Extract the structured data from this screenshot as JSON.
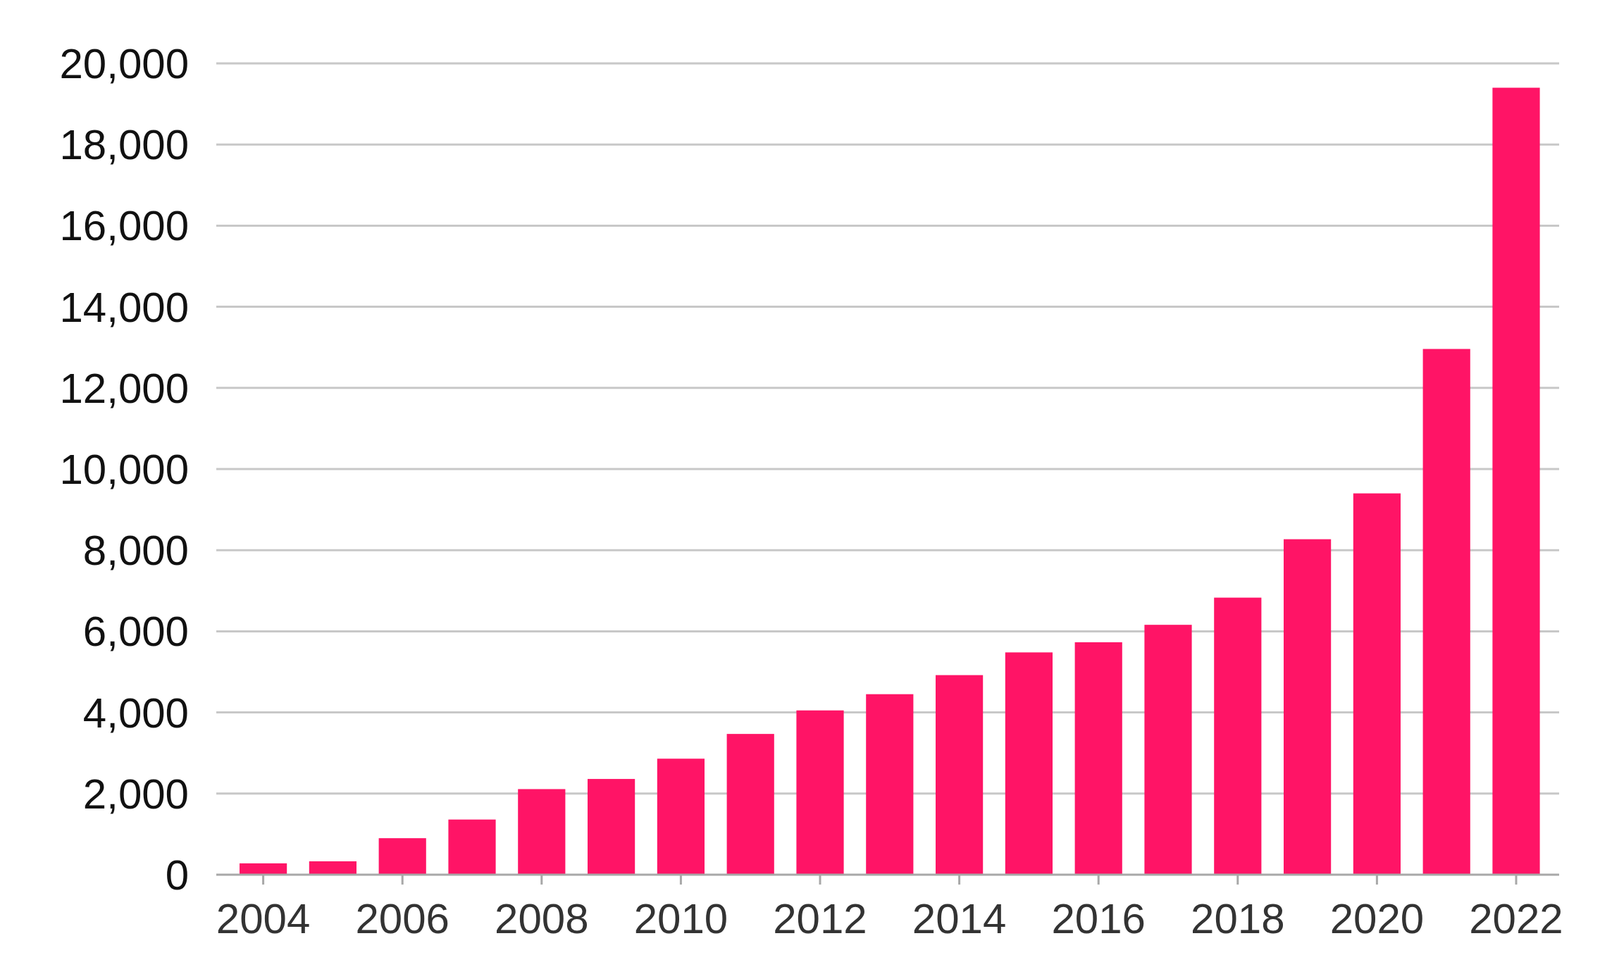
{
  "chart_data": {
    "type": "bar",
    "categories": [
      "2004",
      null,
      "2006",
      null,
      "2008",
      null,
      "2010",
      null,
      "2012",
      null,
      "2014",
      null,
      "2016",
      null,
      "2018",
      null,
      "2020",
      null,
      "2022"
    ],
    "values": [
      280,
      330,
      900,
      1360,
      2110,
      2360,
      2860,
      3470,
      4050,
      4450,
      4920,
      5480,
      5730,
      6160,
      6830,
      8270,
      9400,
      12960,
      19400
    ],
    "color": "#ff1466",
    "ylim": [
      0,
      20000
    ],
    "yticks": [
      0,
      {
        "value": 2000,
        "label": "2,000"
      },
      {
        "value": 4000,
        "label": "4,000"
      },
      {
        "value": 6000,
        "label": "6,000"
      },
      {
        "value": 8000,
        "label": "8,000"
      },
      {
        "value": 10000,
        "label": "10,000"
      },
      {
        "value": 12000,
        "label": "12,000"
      },
      {
        "value": 14000,
        "label": "14,000"
      },
      {
        "value": 16000,
        "label": "16,000"
      },
      {
        "value": 18000,
        "label": "18,000"
      },
      {
        "value": 20000,
        "label": "20,000"
      }
    ],
    "grid": true
  }
}
